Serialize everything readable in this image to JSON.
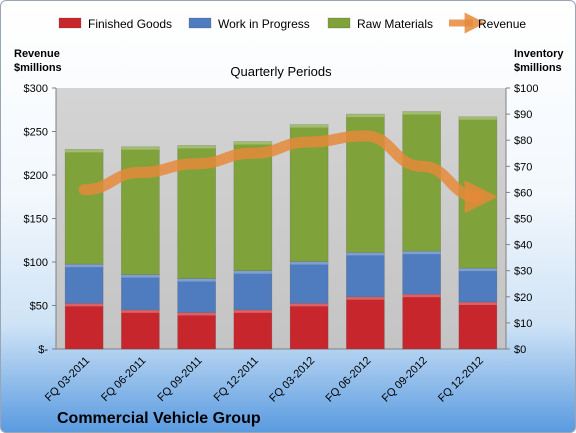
{
  "chart_data": {
    "type": "bar",
    "stacked": true,
    "subtitle": "Quarterly Periods",
    "company": "Commercial Vehicle Group",
    "left_axis_title": [
      "Revenue",
      "$millions"
    ],
    "right_axis_title": [
      "Inventory",
      "$millions"
    ],
    "categories": [
      "FQ 03-2011",
      "FQ 06-2011",
      "FQ 09-2011",
      "FQ 12-2011",
      "FQ 03-2012",
      "FQ 06-2012",
      "FQ 09-2012",
      "FQ 12-2012"
    ],
    "series": [
      {
        "name": "Finished Goods",
        "axis": "right",
        "color": "#c8262d",
        "values": [
          17.5,
          15,
          14,
          15,
          17.5,
          20,
          21,
          18
        ]
      },
      {
        "name": "Work in Progress",
        "axis": "right",
        "color": "#4f7bbf",
        "values": [
          15,
          13.5,
          13,
          15,
          16,
          17,
          16.5,
          13
        ]
      },
      {
        "name": "Raw Materials",
        "axis": "right",
        "color": "#7fa33a",
        "values": [
          44,
          49,
          51,
          49.5,
          52.5,
          53,
          53.5,
          58
        ]
      },
      {
        "name": "Revenue",
        "axis": "left",
        "type": "line",
        "color": "#e58a3a",
        "values": [
          183,
          203,
          213,
          225,
          238,
          245,
          210,
          175
        ]
      }
    ],
    "left_axis": {
      "ylim": [
        0,
        300
      ],
      "ticks": [
        0,
        50,
        100,
        150,
        200,
        250,
        300
      ],
      "tick_labels": [
        "$-",
        "$50",
        "$100",
        "$150",
        "$200",
        "$250",
        "$300"
      ]
    },
    "right_axis": {
      "ylim": [
        0,
        100
      ],
      "ticks": [
        0,
        10,
        20,
        30,
        40,
        50,
        60,
        70,
        80,
        90,
        100
      ],
      "tick_labels": [
        "$0",
        "$10",
        "$20",
        "$30",
        "$40",
        "$50",
        "$60",
        "$70",
        "$80",
        "$90",
        "$100"
      ]
    },
    "grid": false,
    "legend_position": "top"
  }
}
